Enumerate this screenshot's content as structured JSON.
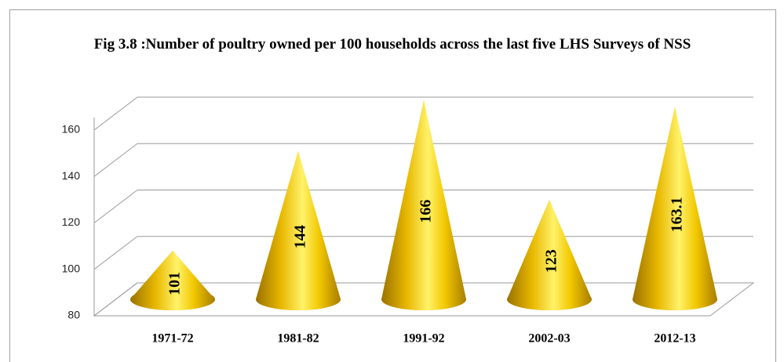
{
  "chart_data": {
    "type": "cone",
    "title": "Fig 3.8 :Number of poultry owned per 100 households across the last five LHS Surveys of NSS",
    "categories": [
      "1971-72",
      "1981-82",
      "1991-92",
      "2002-03",
      "2012-13"
    ],
    "values": [
      101,
      144,
      166,
      123,
      163.1
    ],
    "color": "#f2c200",
    "ylim": [
      80,
      160
    ],
    "yticks": [
      80,
      100,
      120,
      140,
      160
    ],
    "grid": true
  }
}
